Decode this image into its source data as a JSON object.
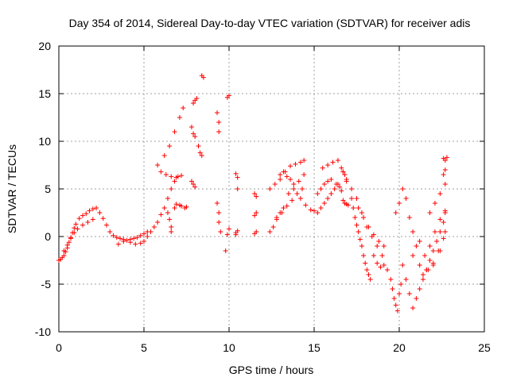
{
  "chart_data": {
    "type": "scatter",
    "title": "Day 354 of 2014, Sidereal Day-to-day VTEC variation (SDTVAR) for receiver adis",
    "xlabel": "GPS time / hours",
    "ylabel": "SDTVAR / TECUs",
    "xlim": [
      0,
      25
    ],
    "ylim": [
      -10,
      20
    ],
    "xticks": [
      0,
      5,
      10,
      15,
      20,
      25
    ],
    "yticks": [
      -10,
      -5,
      0,
      5,
      10,
      15,
      20
    ],
    "grid": true,
    "marker": "+",
    "colors": {
      "series": "#ff0000",
      "grid": "#a0a0a0",
      "axis": "#000000"
    },
    "series": [
      {
        "name": "SDTVAR",
        "x": [
          0.0,
          0.1,
          0.2,
          0.3,
          0.4,
          0.5,
          0.6,
          0.7,
          0.8,
          0.9,
          1.0,
          1.2,
          1.4,
          1.6,
          1.8,
          2.0,
          2.2,
          2.4,
          2.6,
          2.8,
          3.0,
          3.2,
          3.4,
          3.6,
          3.8,
          4.0,
          4.2,
          4.4,
          4.6,
          4.8,
          5.0,
          5.2,
          0.3,
          0.5,
          0.7,
          0.9,
          1.1,
          1.4,
          1.7,
          2.0,
          3.5,
          3.8,
          4.2,
          4.5,
          4.8,
          5.0,
          5.2,
          5.4,
          5.6,
          5.8,
          6.0,
          6.2,
          6.4,
          6.6,
          6.8,
          7.0,
          6.2,
          6.5,
          6.8,
          7.1,
          7.3,
          5.8,
          6.0,
          6.3,
          6.6,
          6.9,
          7.2,
          6.4,
          6.5,
          6.6,
          6.6,
          6.8,
          6.9,
          7.1,
          7.2,
          7.4,
          7.5,
          7.9,
          8.0,
          8.1,
          7.8,
          7.9,
          8.0,
          7.8,
          7.9,
          8.0,
          8.2,
          8.3,
          8.4,
          8.4,
          8.5,
          9.3,
          9.4,
          9.4,
          9.3,
          9.4,
          9.4,
          9.5,
          9.8,
          9.9,
          10.0,
          9.9,
          10.0,
          10.4,
          10.5,
          10.5,
          10.4,
          10.4,
          10.5,
          11.5,
          11.6,
          11.5,
          11.6,
          11.5,
          11.6,
          12.4,
          12.6,
          12.8,
          13.0,
          13.2,
          12.4,
          12.7,
          13.0,
          13.3,
          13.6,
          13.9,
          14.2,
          14.4,
          12.8,
          13.1,
          13.4,
          13.7,
          14.0,
          14.3,
          13.5,
          13.8,
          14.1,
          14.4,
          13.0,
          13.2,
          13.4,
          13.6,
          13.8,
          14.2,
          14.5,
          14.8,
          15.0,
          15.2,
          15.4,
          15.6,
          15.8,
          16.0,
          16.2,
          16.4,
          15.5,
          15.8,
          16.1,
          16.4,
          15.2,
          15.4,
          15.6,
          15.8,
          16.0,
          16.3,
          16.5,
          16.6,
          16.7,
          16.8,
          16.9,
          17.0,
          16.6,
          16.7,
          16.8,
          16.9,
          16.7,
          16.8,
          16.9,
          17.2,
          17.3,
          17.4,
          17.5,
          17.6,
          17.7,
          17.8,
          17.9,
          18.0,
          18.1,
          18.2,
          18.3,
          17.2,
          17.5,
          17.8,
          18.1,
          18.4,
          18.7,
          19.0,
          17.6,
          17.9,
          18.2,
          18.5,
          18.8,
          19.1,
          18.5,
          18.7,
          18.9,
          19.1,
          19.3,
          19.5,
          19.6,
          19.7,
          19.8,
          19.9,
          20.0,
          20.1,
          19.8,
          20.0,
          20.2,
          20.4,
          20.6,
          20.8,
          21.0,
          20.2,
          20.4,
          20.6,
          20.8,
          21.0,
          21.2,
          21.4,
          21.6,
          21.8,
          22.0,
          22.2,
          22.4,
          22.6,
          22.7,
          20.8,
          21.2,
          21.6,
          22.0,
          22.4,
          22.7,
          21.2,
          21.5,
          21.8,
          22.1,
          22.4,
          22.7,
          21.4,
          21.7,
          22.0,
          22.3,
          22.6,
          21.8,
          22.1,
          22.4,
          22.7,
          22.6,
          22.7,
          22.8,
          22.6,
          22.7
        ],
        "y": [
          -2.5,
          -2.4,
          -2.2,
          -2.0,
          -1.6,
          -1.2,
          -0.6,
          -0.1,
          0.4,
          0.9,
          1.3,
          1.9,
          2.2,
          2.4,
          2.7,
          2.9,
          3.0,
          2.5,
          1.9,
          1.2,
          0.5,
          0.1,
          -0.1,
          -0.2,
          -0.3,
          -0.4,
          -0.3,
          -0.2,
          -0.1,
          0.1,
          0.3,
          0.5,
          -1.5,
          -0.9,
          -0.2,
          0.4,
          0.8,
          1.2,
          1.5,
          1.8,
          -0.8,
          -0.5,
          -0.6,
          -0.8,
          -0.7,
          -0.5,
          0.0,
          0.5,
          1.0,
          1.5,
          2.3,
          3.0,
          4.0,
          5.0,
          5.8,
          6.3,
          8.5,
          9.5,
          11.0,
          12.5,
          13.5,
          7.5,
          6.8,
          6.5,
          6.3,
          6.2,
          6.4,
          2.5,
          1.8,
          1.0,
          0.5,
          3.0,
          3.4,
          3.3,
          3.2,
          3.0,
          3.1,
          14.0,
          14.3,
          14.5,
          11.5,
          10.8,
          10.5,
          5.8,
          5.5,
          5.2,
          9.5,
          8.8,
          8.5,
          16.9,
          16.7,
          13.0,
          12.0,
          11.0,
          3.5,
          2.5,
          1.5,
          0.5,
          -1.5,
          0.2,
          0.8,
          14.6,
          14.8,
          6.6,
          6.2,
          5.0,
          0.2,
          0.4,
          0.6,
          4.5,
          4.2,
          2.2,
          2.5,
          0.3,
          0.5,
          0.5,
          1.0,
          1.8,
          2.5,
          3.0,
          5.0,
          5.5,
          6.0,
          6.8,
          7.4,
          7.6,
          7.8,
          8.0,
          2.0,
          2.5,
          3.2,
          3.8,
          4.5,
          5.0,
          4.5,
          5.0,
          5.8,
          6.5,
          6.5,
          6.8,
          6.3,
          6.0,
          5.5,
          4.0,
          3.3,
          2.8,
          2.7,
          2.5,
          3.0,
          3.5,
          4.0,
          4.5,
          5.0,
          5.5,
          7.2,
          7.5,
          7.8,
          8.0,
          4.5,
          5.0,
          5.5,
          5.8,
          6.0,
          5.5,
          5.2,
          4.8,
          3.8,
          3.5,
          3.4,
          3.3,
          7.2,
          6.8,
          6.5,
          5.8,
          6.8,
          6.5,
          6.0,
          4.0,
          3.0,
          2.0,
          1.2,
          0.5,
          -0.3,
          -1.0,
          -2.0,
          -2.8,
          -3.5,
          -4.0,
          -4.5,
          5.0,
          4.0,
          2.5,
          1.0,
          0.0,
          -1.0,
          -2.0,
          3.0,
          2.0,
          1.0,
          0.2,
          -0.5,
          -1.0,
          -2.0,
          -2.8,
          -3.2,
          -3.0,
          -3.5,
          -4.5,
          -5.5,
          -6.5,
          -7.2,
          -7.8,
          -6.0,
          -5.0,
          2.5,
          3.5,
          5.0,
          4.0,
          2.0,
          0.5,
          -1.0,
          -3.0,
          -4.5,
          -6.0,
          -7.5,
          -6.5,
          -5.5,
          -4.5,
          -3.5,
          -2.5,
          -1.5,
          -0.5,
          0.5,
          1.5,
          2.5,
          -2.0,
          -3.0,
          -3.5,
          -3.0,
          -1.5,
          0.5,
          -0.5,
          -2.0,
          -1.0,
          0.5,
          1.8,
          2.7,
          -4.0,
          -3.5,
          -2.8,
          -1.5,
          -0.2,
          2.5,
          3.5,
          4.5,
          5.5,
          6.5,
          7.0,
          8.3,
          8.2,
          8.0
        ]
      }
    ]
  }
}
